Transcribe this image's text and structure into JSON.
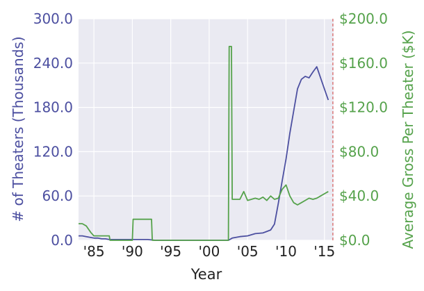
{
  "chart_data": {
    "type": "line",
    "title": "",
    "xlabel": "Year",
    "ylabel_left": "# of Theaters (Thousands)",
    "ylabel_right": "Average Gross Per Theater ($K)",
    "xlim": [
      1983,
      2016.2
    ],
    "ylim_left": [
      0,
      300
    ],
    "ylim_right": [
      0,
      200
    ],
    "grid": true,
    "background": "#eaeaf2",
    "colors": {
      "theaters": "#4c4fa0",
      "gross": "#55a24b",
      "marker_line": "#d9534f"
    },
    "x_ticks": [
      {
        "value": 1985,
        "label": "'85"
      },
      {
        "value": 1990,
        "label": "'90"
      },
      {
        "value": 1995,
        "label": "'95"
      },
      {
        "value": 2000,
        "label": "'00"
      },
      {
        "value": 2005,
        "label": "'05"
      },
      {
        "value": 2010,
        "label": "'10"
      },
      {
        "value": 2015,
        "label": "'15"
      }
    ],
    "y_ticks_left": [
      {
        "value": 0,
        "label": "0.0"
      },
      {
        "value": 60,
        "label": "60.0"
      },
      {
        "value": 120,
        "label": "120.0"
      },
      {
        "value": 180,
        "label": "180.0"
      },
      {
        "value": 240,
        "label": "240.0"
      },
      {
        "value": 300,
        "label": "300.0"
      }
    ],
    "y_ticks_right": [
      {
        "value": 0,
        "label": "$0.0"
      },
      {
        "value": 40,
        "label": "$40.0"
      },
      {
        "value": 80,
        "label": "$80.0"
      },
      {
        "value": 120,
        "label": "$120.0"
      },
      {
        "value": 160,
        "label": "$160.0"
      },
      {
        "value": 200,
        "label": "$200.0"
      }
    ],
    "vertical_marker_x": 2016.1,
    "series": [
      {
        "name": "# of Theaters",
        "axis": "left",
        "x": [
          1983,
          1983.5,
          1984,
          1984.5,
          1985,
          1985.5,
          1986,
          1986.5,
          1987,
          1990,
          1992,
          1993,
          1995,
          2000,
          2002.5,
          2003,
          2004,
          2005,
          2006,
          2007,
          2008,
          2008.5,
          2009,
          2009.5,
          2010,
          2010.5,
          2011,
          2011.5,
          2012,
          2012.5,
          2013,
          2013.5,
          2014,
          2014.5,
          2015,
          2015.5
        ],
        "y": [
          6,
          6,
          5,
          4,
          3,
          3,
          2,
          2,
          1,
          1,
          1,
          0,
          0,
          0,
          0,
          3,
          5,
          6,
          9,
          10,
          14,
          22,
          50,
          80,
          110,
          145,
          175,
          205,
          218,
          222,
          220,
          228,
          235,
          220,
          205,
          190
        ]
      },
      {
        "name": "Average Gross Per Theater",
        "axis": "right",
        "x": [
          1983,
          1983.5,
          1984,
          1984.2,
          1984.6,
          1985,
          1986,
          1987,
          1987.1,
          1990,
          1990.1,
          1992.5,
          1992.6,
          2002.5,
          2002.6,
          2002.9,
          2003,
          2004,
          2004.5,
          2005,
          2005.5,
          2006,
          2006.5,
          2007,
          2007.5,
          2008,
          2008.5,
          2009,
          2009.5,
          2010,
          2010.5,
          2011,
          2011.5,
          2012,
          2012.5,
          2013,
          2013.5,
          2014,
          2014.5,
          2015,
          2015.5
        ],
        "y": [
          15,
          15,
          13,
          11,
          7,
          4,
          4,
          4,
          0,
          0,
          19,
          19,
          0,
          0,
          175,
          175,
          37,
          37,
          44,
          36,
          37,
          38,
          37,
          39,
          36,
          40,
          37,
          38,
          46,
          50,
          40,
          34,
          32,
          34,
          36,
          38,
          37,
          38,
          40,
          42,
          44
        ]
      }
    ]
  }
}
